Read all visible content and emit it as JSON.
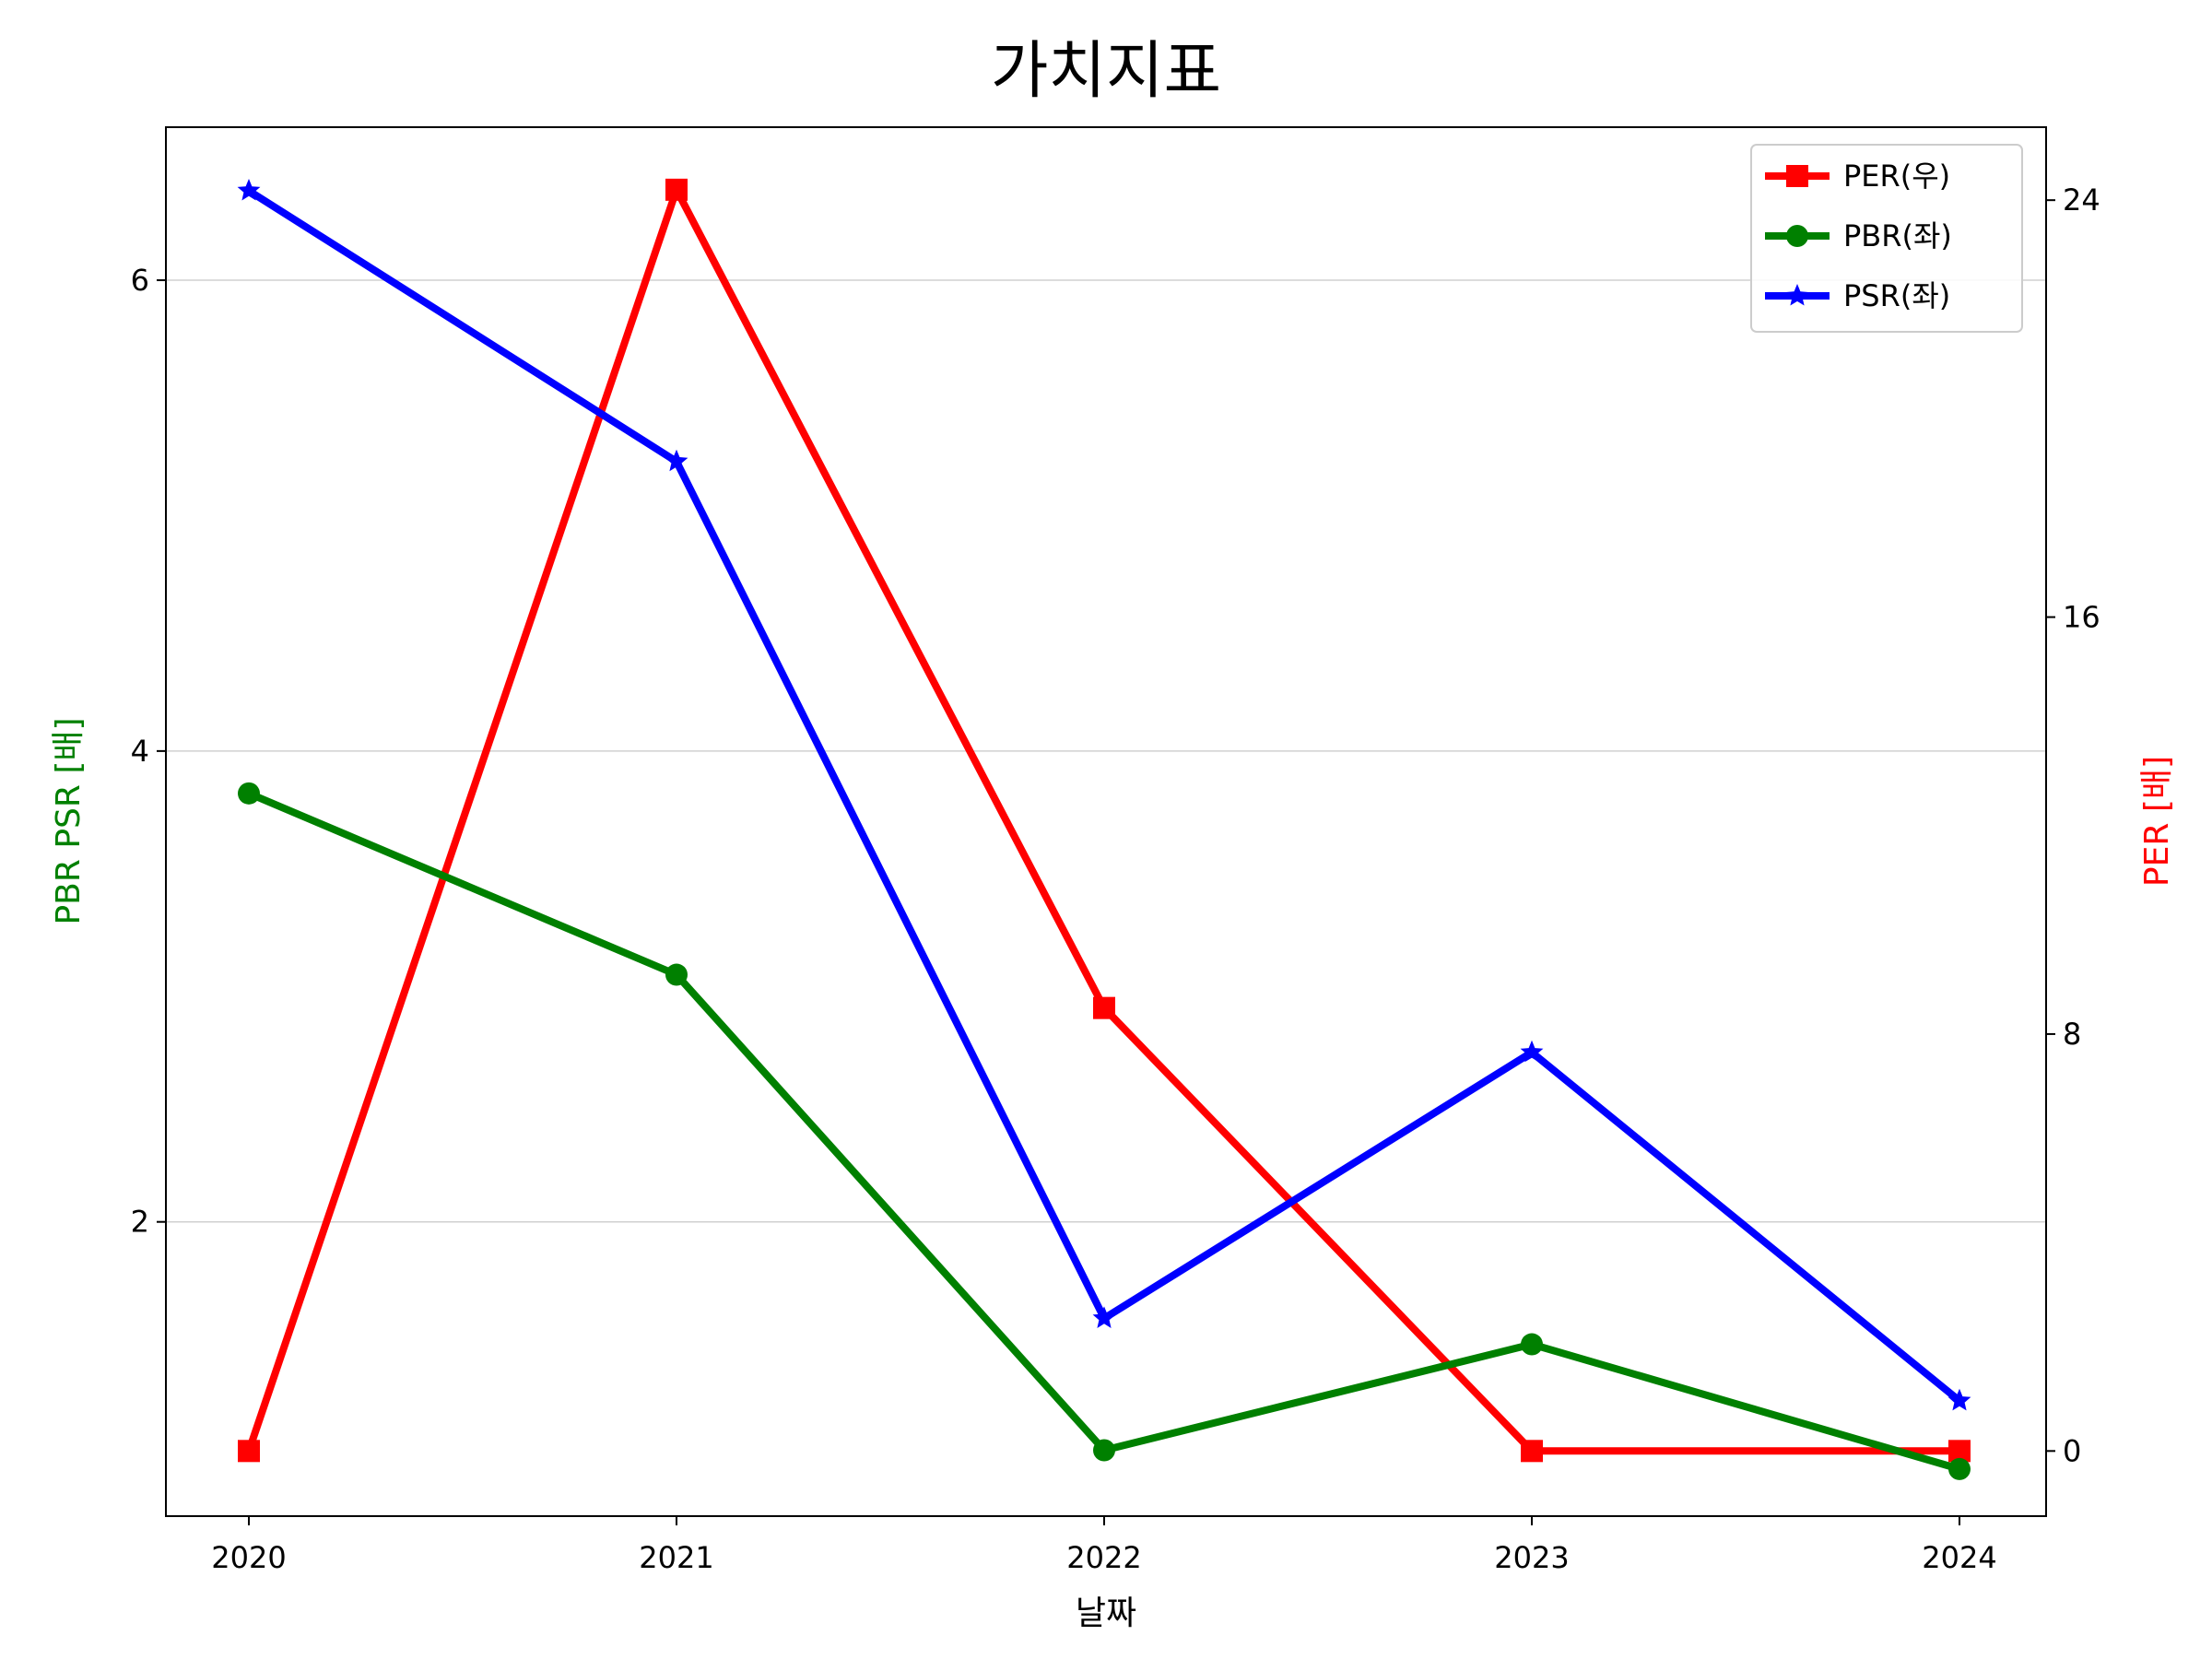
{
  "chart_data": {
    "type": "line",
    "title": "가치지표",
    "xlabel": "날짜",
    "ylabel_left": "PBR PSR [배]",
    "ylabel_right": "PER [배]",
    "categories": [
      "2020",
      "2021",
      "2022",
      "2023",
      "2024"
    ],
    "left_ylim": [
      0.75,
      6.65
    ],
    "right_ylim": [
      -1.25,
      25.4
    ],
    "left_ticks": [
      2,
      4,
      6
    ],
    "right_ticks": [
      0,
      8,
      16,
      24
    ],
    "grid": "horizontal (left axis)",
    "legend_position": "top-right",
    "series": [
      {
        "name": "PER(우)",
        "axis": "right",
        "color": "#ff0000",
        "marker": "square",
        "values": [
          0,
          24.2,
          8.5,
          0,
          0
        ]
      },
      {
        "name": "PBR(좌)",
        "axis": "left",
        "color": "#008000",
        "marker": "circle",
        "values": [
          3.82,
          3.05,
          1.03,
          1.48,
          0.95
        ]
      },
      {
        "name": "PSR(좌)",
        "axis": "left",
        "color": "#0000ff",
        "marker": "star",
        "values": [
          6.38,
          5.23,
          1.59,
          2.72,
          1.24
        ]
      }
    ]
  }
}
